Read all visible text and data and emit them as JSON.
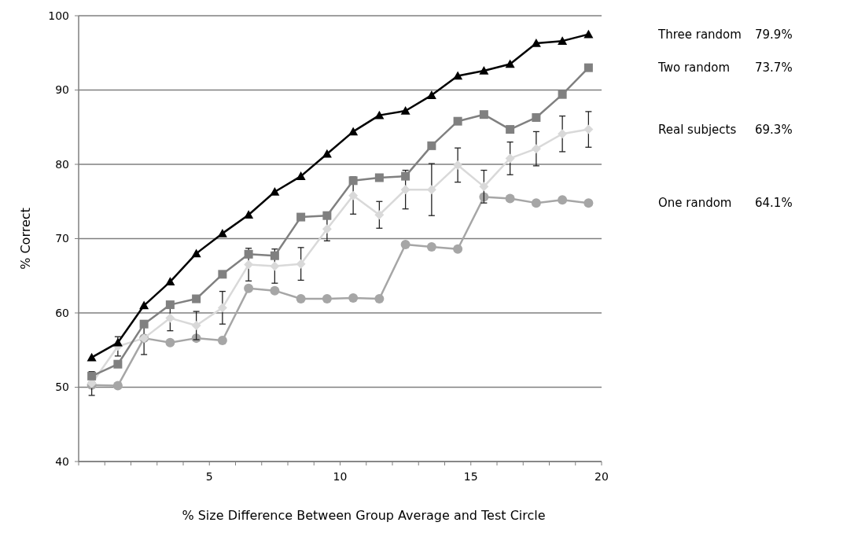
{
  "chart_data": {
    "type": "line",
    "xlabel": "% Size Difference Between Group Average and Test Circle",
    "ylabel": "% Correct",
    "x": [
      0.5,
      1.5,
      2.5,
      3.5,
      4.5,
      5.5,
      6.5,
      7.5,
      8.5,
      9.5,
      10.5,
      11.5,
      12.5,
      13.5,
      14.5,
      15.5,
      16.5,
      17.5,
      18.5,
      19.5
    ],
    "xlim": [
      0,
      20
    ],
    "xticks": [
      {
        "value": 0,
        "label": null
      },
      {
        "value": 1,
        "label": null
      },
      {
        "value": 2,
        "label": null
      },
      {
        "value": 3,
        "label": null
      },
      {
        "value": 4,
        "label": null
      },
      5,
      {
        "value": 6,
        "label": null
      },
      {
        "value": 7,
        "label": null
      },
      {
        "value": 8,
        "label": null
      },
      {
        "value": 9,
        "label": null
      },
      10,
      {
        "value": 11,
        "label": null
      },
      {
        "value": 12,
        "label": null
      },
      {
        "value": 13,
        "label": null
      },
      {
        "value": 14,
        "label": null
      },
      15,
      {
        "value": 16,
        "label": null
      },
      {
        "value": 17,
        "label": null
      },
      {
        "value": 18,
        "label": null
      },
      {
        "value": 19,
        "label": null
      },
      20
    ],
    "ylim": [
      40,
      100
    ],
    "yticks": [
      40,
      50,
      60,
      70,
      80,
      90,
      100
    ],
    "grid": "y",
    "series": [
      {
        "name": "Three random",
        "color": "#000000",
        "marker": "triangle",
        "values": [
          54,
          56,
          61,
          64.2,
          68,
          70.7,
          73.2,
          76.3,
          78.4,
          81.4,
          84.4,
          86.6,
          87.2,
          89.3,
          91.9,
          92.6,
          93.5,
          96.3,
          96.6,
          97.5
        ]
      },
      {
        "name": "Two random",
        "color": "#808080",
        "marker": "square",
        "values": [
          51.5,
          53.1,
          58.5,
          61.1,
          61.9,
          65.2,
          67.9,
          67.7,
          72.9,
          73.1,
          77.8,
          78.2,
          78.4,
          82.5,
          85.8,
          86.7,
          84.7,
          86.3,
          89.4,
          93.0
        ]
      },
      {
        "name": "Real subjects",
        "color": "#d9d9d9",
        "marker": "diamond",
        "values": [
          50.5,
          55.5,
          56.6,
          59.3,
          58.3,
          60.7,
          66.5,
          66.3,
          66.6,
          71.3,
          75.8,
          73.2,
          76.6,
          76.6,
          79.9,
          77.0,
          80.8,
          82.1,
          84.1,
          84.7
        ],
        "errors": [
          1.6,
          1.3,
          2.2,
          1.7,
          1.9,
          2.2,
          2.2,
          2.3,
          2.2,
          1.6,
          2.5,
          1.8,
          2.6,
          3.5,
          2.3,
          2.2,
          2.2,
          2.3,
          2.4,
          2.4
        ]
      },
      {
        "name": "One random",
        "color": "#a6a6a6",
        "marker": "circle",
        "values": [
          50.3,
          50.2,
          56.6,
          56.0,
          56.6,
          56.3,
          63.3,
          63.0,
          61.9,
          61.9,
          62.0,
          61.9,
          69.2,
          68.9,
          68.6,
          75.6,
          75.4,
          74.8,
          75.2,
          74.8
        ]
      }
    ],
    "annotations": [
      "79.9%",
      "73.7%",
      "69.3%",
      "64.1%"
    ]
  }
}
